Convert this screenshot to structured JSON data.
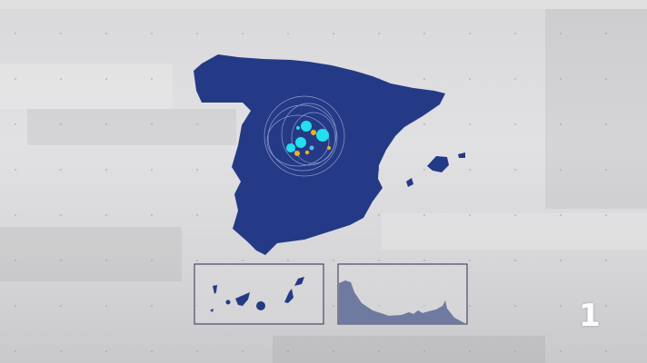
{
  "colors": {
    "map": "#243a86",
    "marker_primary": "#22e0ee",
    "marker_secondary": "#f0b020",
    "background": "#dcdcde"
  },
  "channel_logo": {
    "text": "1"
  }
}
